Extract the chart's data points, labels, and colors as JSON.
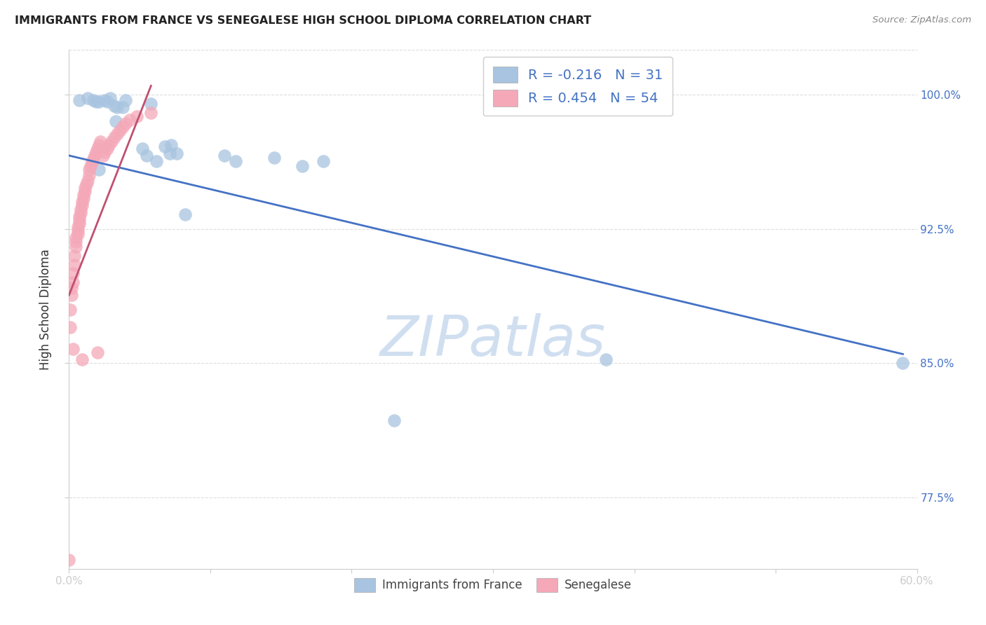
{
  "title": "IMMIGRANTS FROM FRANCE VS SENEGALESE HIGH SCHOOL DIPLOMA CORRELATION CHART",
  "source": "Source: ZipAtlas.com",
  "ylabel": "High School Diploma",
  "xlim": [
    0.0,
    0.6
  ],
  "ylim": [
    0.735,
    1.025
  ],
  "legend_blue_label": "Immigrants from France",
  "legend_pink_label": "Senegalese",
  "R_blue": -0.216,
  "N_blue": 31,
  "R_pink": 0.454,
  "N_pink": 54,
  "blue_color": "#a8c4e0",
  "pink_color": "#f4a8b8",
  "blue_line_color": "#4472c4",
  "pink_line_color": "#c05070",
  "watermark_color": "#d0dff0",
  "background_color": "#ffffff",
  "grid_color": "#dddddd",
  "y_ticks": [
    0.775,
    0.85,
    0.925,
    1.0
  ],
  "y_tick_labels": [
    "77.5%",
    "85.0%",
    "92.5%",
    "100.0%"
  ],
  "blue_line_x0": 0.0,
  "blue_line_y0": 0.966,
  "blue_line_x1": 0.59,
  "blue_line_y1": 0.855,
  "pink_line_x0": 0.0,
  "pink_line_y0": 0.888,
  "pink_line_x1": 0.058,
  "pink_line_y1": 1.005,
  "blue_scatter_x": [
    0.007,
    0.013,
    0.017,
    0.019,
    0.021,
    0.025,
    0.027,
    0.029,
    0.032,
    0.033,
    0.034,
    0.038,
    0.04,
    0.052,
    0.055,
    0.058,
    0.068,
    0.072,
    0.076,
    0.11,
    0.118,
    0.145,
    0.165,
    0.23,
    0.38,
    0.59,
    0.021,
    0.062,
    0.071,
    0.082,
    0.18
  ],
  "blue_scatter_y": [
    0.997,
    0.998,
    0.997,
    0.996,
    0.996,
    0.997,
    0.996,
    0.998,
    0.994,
    0.985,
    0.993,
    0.993,
    0.997,
    0.97,
    0.966,
    0.995,
    0.971,
    0.972,
    0.967,
    0.966,
    0.963,
    0.965,
    0.96,
    0.818,
    0.852,
    0.85,
    0.958,
    0.963,
    0.967,
    0.933,
    0.963
  ],
  "pink_scatter_x": [
    0.0,
    0.001,
    0.001,
    0.002,
    0.002,
    0.003,
    0.003,
    0.004,
    0.004,
    0.005,
    0.005,
    0.005,
    0.006,
    0.006,
    0.006,
    0.007,
    0.007,
    0.007,
    0.008,
    0.008,
    0.009,
    0.009,
    0.01,
    0.01,
    0.011,
    0.011,
    0.012,
    0.013,
    0.014,
    0.014,
    0.015,
    0.016,
    0.017,
    0.018,
    0.019,
    0.02,
    0.021,
    0.022,
    0.024,
    0.025,
    0.027,
    0.028,
    0.03,
    0.032,
    0.034,
    0.036,
    0.038,
    0.04,
    0.043,
    0.048,
    0.058,
    0.003,
    0.009,
    0.02
  ],
  "pink_scatter_y": [
    0.74,
    0.87,
    0.88,
    0.888,
    0.892,
    0.895,
    0.9,
    0.905,
    0.91,
    0.915,
    0.918,
    0.92,
    0.922,
    0.924,
    0.926,
    0.928,
    0.93,
    0.932,
    0.934,
    0.936,
    0.938,
    0.94,
    0.942,
    0.944,
    0.946,
    0.948,
    0.95,
    0.952,
    0.955,
    0.958,
    0.96,
    0.962,
    0.964,
    0.966,
    0.968,
    0.97,
    0.972,
    0.974,
    0.966,
    0.968,
    0.97,
    0.972,
    0.974,
    0.976,
    0.978,
    0.98,
    0.982,
    0.984,
    0.986,
    0.988,
    0.99,
    0.858,
    0.852,
    0.856
  ]
}
